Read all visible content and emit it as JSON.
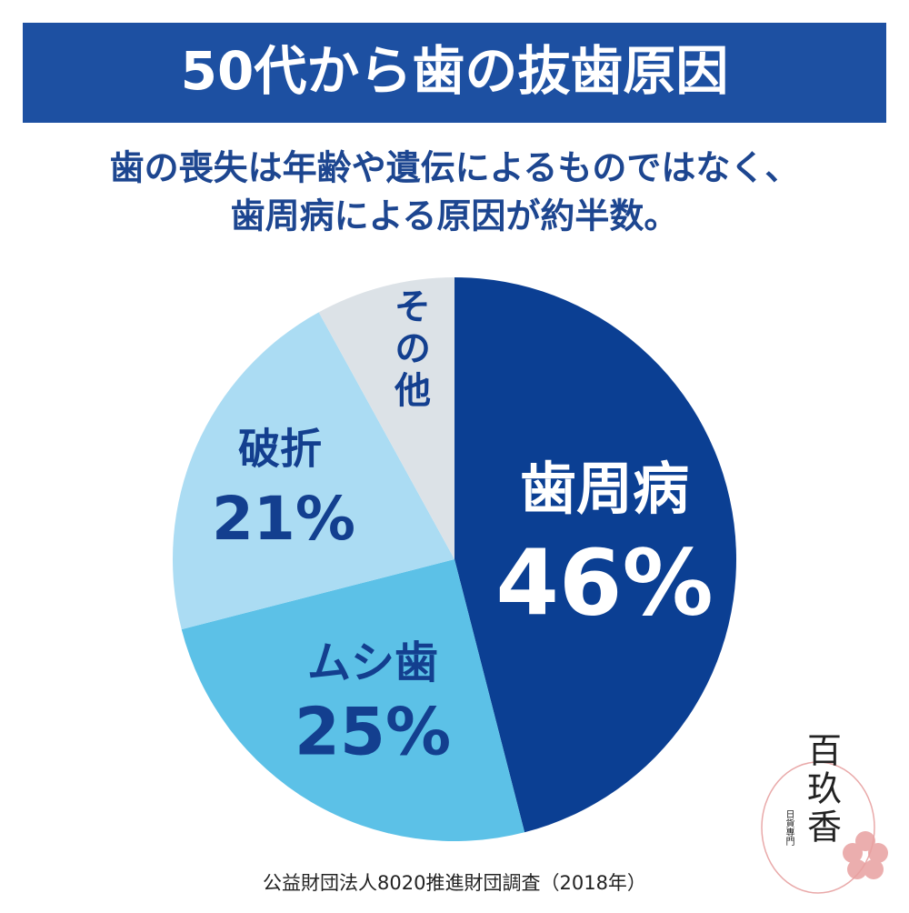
{
  "header": {
    "title": "50代から歯の抜歯原因",
    "subtitle": [
      "歯の喪失は年齢や遺伝によるものではなく、",
      "歯周病による原因が約半数。"
    ]
  },
  "chart_data": {
    "type": "pie",
    "categories": [
      "歯周病",
      "ムシ歯",
      "破折",
      "その他"
    ],
    "values": [
      46,
      25,
      21,
      8
    ],
    "value_labels": [
      "46%",
      "25%",
      "21%",
      null
    ],
    "colors": [
      "#0b3f93",
      "#5cc1e7",
      "#abdcf3",
      "#dce2e7"
    ]
  },
  "source": "公益財団法人8020推進財団調査（2018年）",
  "watermark": {
    "name": "百玖香",
    "tagline": "日貨專門"
  }
}
